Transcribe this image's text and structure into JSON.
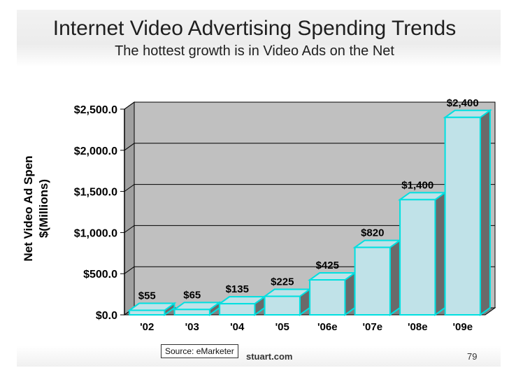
{
  "slide": {
    "title": "Internet Video Advertising Spending Trends",
    "subtitle": "The hottest growth is in Video Ads on the Net",
    "source": "Source: eMarketer",
    "footer_site": "stuart.com",
    "page_number": "79"
  },
  "chart_data": {
    "type": "bar",
    "categories": [
      "'02",
      "'03",
      "'04",
      "'05",
      "'06e",
      "'07e",
      "'08e",
      "'09e"
    ],
    "values": [
      55,
      65,
      135,
      225,
      425,
      820,
      1400,
      2400
    ],
    "data_labels": [
      "$55",
      "$65",
      "$135",
      "$225",
      "$425",
      "$820",
      "$1,400",
      "$2,400"
    ],
    "ylabel_lines": [
      "Net Video Ad Spen",
      "$(Millions)"
    ],
    "xlabel": "",
    "ylim": [
      0,
      2500
    ],
    "yticks": [
      0,
      500,
      1000,
      1500,
      2000,
      2500
    ],
    "ytick_labels": [
      "$0.0",
      "$500.0",
      "$1,000.0",
      "$1,500.0",
      "$2,000.0",
      "$2,500.0"
    ],
    "grid": true,
    "colors": {
      "bar_face": "#c0e2e8",
      "bar_edge": "#00e0e0",
      "bar_side": "#6a6a6a",
      "plot_bg": "#c0c0c0",
      "wall_side": "#a0a0a0"
    }
  }
}
